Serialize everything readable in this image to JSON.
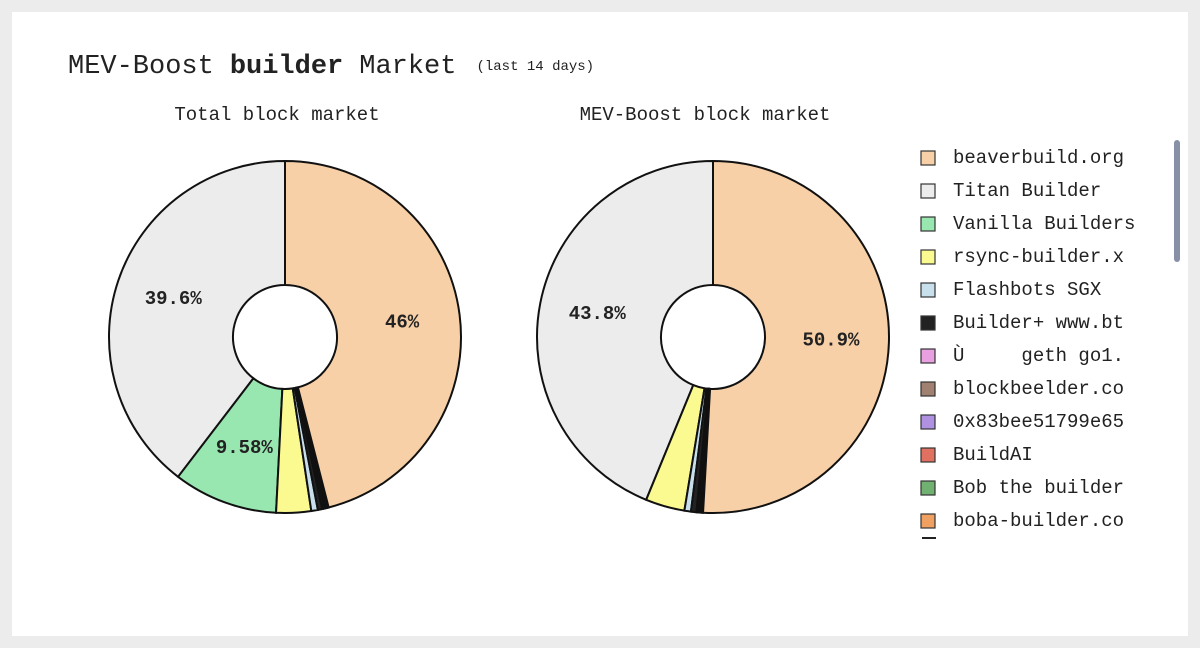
{
  "title": [
    "MEV-Boost",
    "builder",
    "Market"
  ],
  "subtitle": "(last 14 days)",
  "legend": {
    "categories": [
      "beaverbuild.org",
      "Titan Builder",
      "Vanilla Builders",
      "rsync-builder.x",
      "Flashbots SGX",
      "Builder+ www.bt",
      "Ù     geth go1.",
      "blockbeelder.co",
      "0x83bee51799e65",
      "BuildAI",
      "Bob the builder",
      "boba-builder.co"
    ],
    "colors": [
      "#f7d0a8",
      "#ececec",
      "#98e6b0",
      "#fafa90",
      "#c8e0ec",
      "#222222",
      "#e8a0e0",
      "#a08070",
      "#b090e0",
      "#e07060",
      "#70b070",
      "#f0a060"
    ]
  },
  "chart_data": [
    {
      "type": "pie",
      "title": "Total block market",
      "values": [
        46,
        39.6,
        9.58,
        3.2,
        0.6,
        0.4,
        0.1,
        0.1,
        0.1,
        0.1,
        0.1,
        0.1
      ],
      "value_labels": [
        "46%",
        "39.6%",
        "9.58%",
        null,
        null,
        null,
        null,
        null,
        null,
        null,
        null,
        null
      ]
    },
    {
      "type": "pie",
      "title": "MEV-Boost block market",
      "values": [
        50.9,
        43.8,
        0,
        3.6,
        0.6,
        0.5,
        0.1,
        0.1,
        0.1,
        0.1,
        0.1,
        0.1
      ],
      "value_labels": [
        "50.9%",
        "43.8%",
        null,
        null,
        null,
        null,
        null,
        null,
        null,
        null,
        null,
        null
      ]
    }
  ]
}
